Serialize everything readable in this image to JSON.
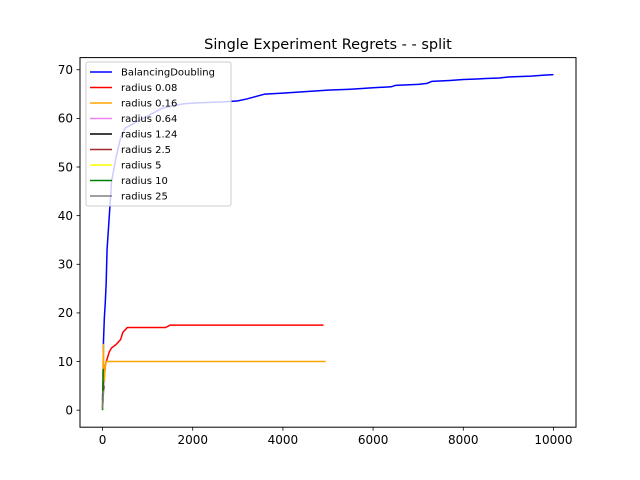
{
  "chart_data": {
    "type": "line",
    "title": "Single Experiment Regrets -  - split",
    "xlabel": "",
    "ylabel": "",
    "xlim": [
      -500,
      10500
    ],
    "ylim": [
      -3.5,
      72.5
    ],
    "xticks": [
      0,
      2000,
      4000,
      6000,
      8000,
      10000
    ],
    "yticks": [
      0,
      10,
      20,
      30,
      40,
      50,
      60,
      70
    ],
    "grid": false,
    "legend_position": "upper-left",
    "series": [
      {
        "name": "BalancingDoubling",
        "color": "#0000ff",
        "x": [
          0,
          10,
          20,
          40,
          60,
          80,
          100,
          150,
          200,
          300,
          400,
          500,
          700,
          900,
          1100,
          1300,
          1500,
          1800,
          2100,
          2400,
          2700,
          3000,
          3200,
          3600,
          4000,
          4500,
          5000,
          5500,
          6000,
          6400,
          6500,
          7000,
          7200,
          7300,
          7700,
          8000,
          8300,
          8500,
          8800,
          9000,
          9200,
          9500,
          9800,
          10000
        ],
        "y": [
          2,
          6,
          14,
          19,
          22,
          26,
          33,
          40,
          47,
          52,
          56,
          58,
          59,
          60,
          61,
          62,
          62.5,
          63,
          63.2,
          63.3,
          63.4,
          63.6,
          64,
          65,
          65.2,
          65.5,
          65.8,
          66,
          66.3,
          66.5,
          66.8,
          67,
          67.2,
          67.6,
          67.8,
          68,
          68.1,
          68.2,
          68.3,
          68.5,
          68.6,
          68.7,
          68.9,
          69
        ]
      },
      {
        "name": "radius 0.08",
        "color": "#ff0000",
        "x": [
          0,
          20,
          40,
          60,
          80,
          100,
          150,
          200,
          300,
          400,
          450,
          500,
          550,
          700,
          1000,
          1400,
          1500,
          2000,
          3000,
          4000,
          4900
        ],
        "y": [
          3,
          5,
          7,
          9,
          10,
          10.5,
          12,
          12.8,
          13.5,
          14.5,
          16,
          16.5,
          17,
          17,
          17,
          17,
          17.5,
          17.5,
          17.5,
          17.5,
          17.5
        ]
      },
      {
        "name": "radius 0.16",
        "color": "#ffa500",
        "x": [
          0,
          5,
          10,
          20,
          30,
          40,
          60,
          80,
          100,
          150,
          200,
          500,
          1000,
          2000,
          3000,
          4000,
          4950
        ],
        "y": [
          1,
          4,
          8,
          13.5,
          8,
          6,
          9,
          10,
          10,
          10,
          10,
          10,
          10,
          10,
          10,
          10,
          10
        ]
      },
      {
        "name": "radius 0.64",
        "color": "#ee82ee",
        "x": [
          0,
          10,
          20,
          30
        ],
        "y": [
          1,
          3,
          5,
          6
        ]
      },
      {
        "name": "radius 1.24",
        "color": "#000000",
        "x": [
          0,
          10,
          20,
          30
        ],
        "y": [
          0.5,
          2,
          4,
          5
        ]
      },
      {
        "name": "radius 2.5",
        "color": "#a52a2a",
        "x": [
          0,
          10,
          20
        ],
        "y": [
          0.5,
          3,
          6
        ]
      },
      {
        "name": "radius 5",
        "color": "#ffff00",
        "x": [
          0,
          10,
          20
        ],
        "y": [
          0.2,
          2,
          4
        ]
      },
      {
        "name": "radius 10",
        "color": "#008000",
        "x": [
          0,
          5,
          10,
          15,
          20
        ],
        "y": [
          0,
          3,
          6,
          8,
          8.5
        ]
      },
      {
        "name": "radius 25",
        "color": "#808080",
        "x": [
          0,
          10,
          20
        ],
        "y": [
          0.3,
          2,
          4
        ]
      }
    ]
  }
}
